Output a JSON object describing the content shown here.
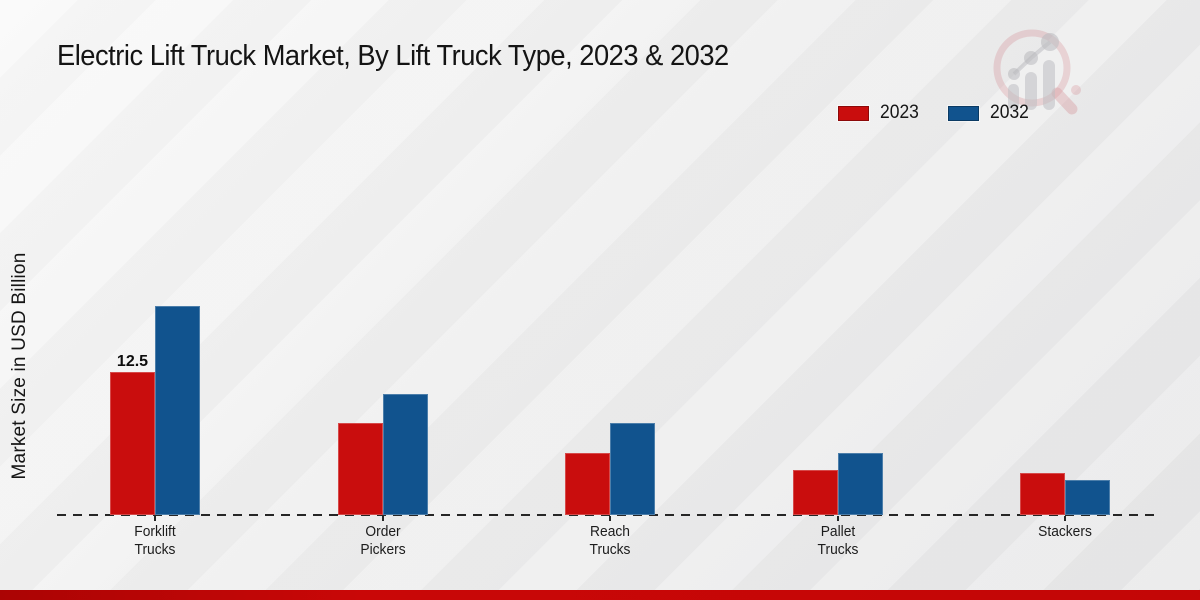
{
  "header": {
    "title": "Electric Lift Truck Market, By Lift Truck Type, 2023 & 2032"
  },
  "y_axis": {
    "label": "Market Size in USD Billion"
  },
  "legend": {
    "items": [
      {
        "label": "2023",
        "color": "#c90d0d"
      },
      {
        "label": "2032",
        "color": "#11538e"
      }
    ]
  },
  "colors": {
    "accent_red": "#c90d0d",
    "accent_blue": "#11538e",
    "footer_band": "#c00606",
    "axis": "#262626"
  },
  "watermark": {
    "name": "market-research-magnifier-logo"
  },
  "chart_data": {
    "type": "bar",
    "title": "Electric Lift Truck Market, By Lift Truck Type, 2023 & 2032",
    "xlabel": "",
    "ylabel": "Market Size in USD Billion",
    "categories": [
      "Forklift Trucks",
      "Order Pickers",
      "Reach Trucks",
      "Pallet Trucks",
      "Stackers"
    ],
    "category_lines": [
      [
        "Forklift",
        "Trucks"
      ],
      [
        "Order",
        "Pickers"
      ],
      [
        "Reach",
        "Trucks"
      ],
      [
        "Pallet",
        "Trucks"
      ],
      [
        "Stackers"
      ]
    ],
    "series": [
      {
        "name": "2023",
        "color": "#c90d0d",
        "values": [
          12.5,
          8.0,
          5.4,
          3.9,
          3.7
        ]
      },
      {
        "name": "2032",
        "color": "#11538e",
        "values": [
          18.3,
          10.6,
          8.0,
          5.4,
          3.1
        ]
      }
    ],
    "value_labels": [
      {
        "series_index": 0,
        "category_index": 0,
        "text": "12.5"
      }
    ],
    "ylim": [
      0,
      20
    ],
    "grid": false,
    "legend_position": "top-right",
    "baseline_style": "dashed",
    "y_axis_ticks_visible": false
  }
}
